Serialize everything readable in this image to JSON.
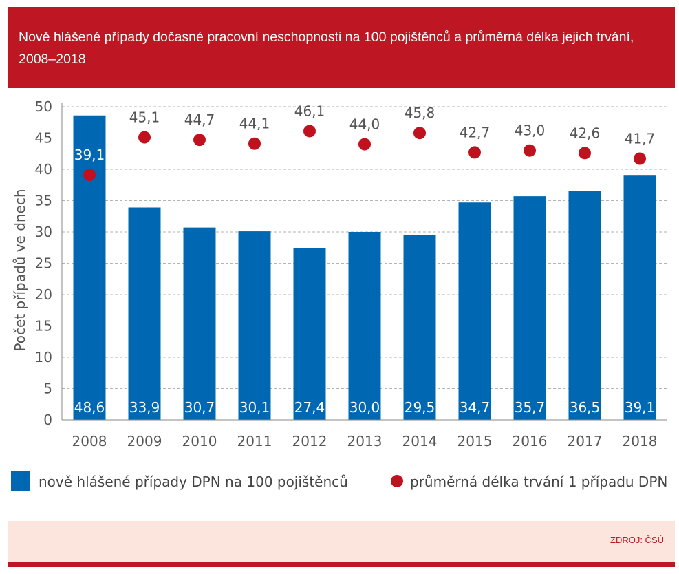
{
  "header": {
    "title": "Nově hlášené případy dočasné pracovní neschopnosti na 100 pojištěnců a průměrná délka jejich trvání, 2008–2018"
  },
  "footer": {
    "source": "ZDROJ: ČSÚ"
  },
  "colors": {
    "brand_red": "#be1622",
    "bar_blue": "#0068b3",
    "dot_red": "#c0121e",
    "footer_bg": "#fbe5dd"
  },
  "chart_data": {
    "type": "bar",
    "categories": [
      "2008",
      "2009",
      "2010",
      "2011",
      "2012",
      "2013",
      "2014",
      "2015",
      "2016",
      "2017",
      "2018"
    ],
    "series": [
      {
        "name": "nově hlášené případy DPN na 100 pojištěnců",
        "kind": "bar",
        "values": [
          48.6,
          33.9,
          30.7,
          30.1,
          27.4,
          30.0,
          29.5,
          34.7,
          35.7,
          36.5,
          39.1
        ],
        "labels": [
          "48,6",
          "33,9",
          "30,7",
          "30,1",
          "27,4",
          "30,0",
          "29,5",
          "34,7",
          "35,7",
          "36,5",
          "39,1"
        ]
      },
      {
        "name": "průměrná délka trvání 1 případu DPN",
        "kind": "scatter",
        "values": [
          39.1,
          45.1,
          44.7,
          44.1,
          46.1,
          44.0,
          45.8,
          42.7,
          43.0,
          42.6,
          41.7
        ],
        "labels": [
          "39,1",
          "45,1",
          "44,7",
          "44,1",
          "46,1",
          "44,0",
          "45,8",
          "42,7",
          "43,0",
          "42,6",
          "41,7"
        ]
      }
    ],
    "ylabel": "Počet případů ve dnech",
    "xlabel": "",
    "ylim": [
      0,
      50
    ],
    "yticks": [
      0,
      5,
      10,
      15,
      20,
      25,
      30,
      35,
      40,
      45,
      50
    ],
    "grid": true,
    "legend_position": "bottom"
  }
}
